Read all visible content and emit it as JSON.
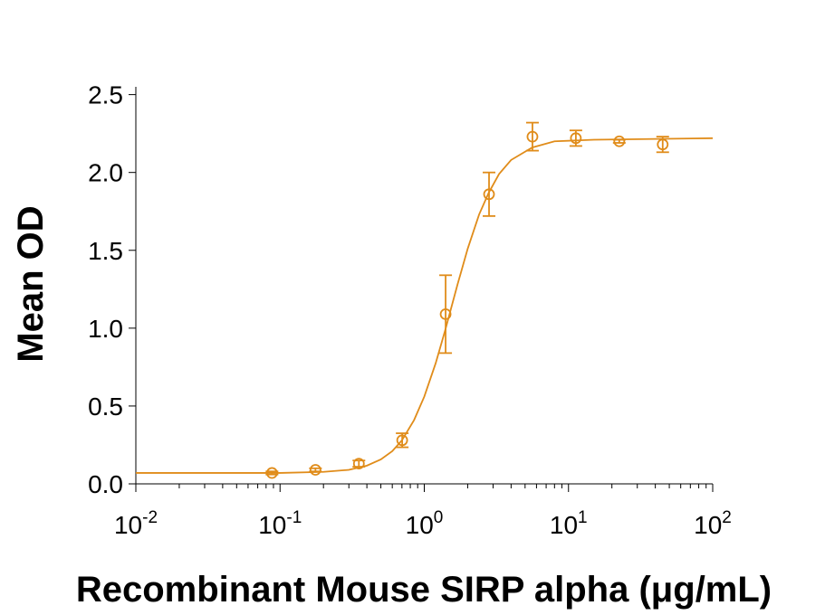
{
  "chart_data": {
    "type": "scatter",
    "xlabel": "Recombinant Mouse SIRP alpha (μg/mL)",
    "ylabel": "Mean OD",
    "xscale": "log",
    "xlim": [
      0.01,
      100
    ],
    "xticks": [
      {
        "value": 0.01,
        "label": "10",
        "exponent": "-2"
      },
      {
        "value": 0.1,
        "label": "10",
        "exponent": "-1"
      },
      {
        "value": 1,
        "label": "10",
        "exponent": "0"
      },
      {
        "value": 10,
        "label": "10",
        "exponent": "1"
      },
      {
        "value": 100,
        "label": "10",
        "exponent": "2"
      }
    ],
    "xminorticks": [
      0.02,
      0.03,
      0.04,
      0.05,
      0.06,
      0.07,
      0.08,
      0.09,
      0.2,
      0.3,
      0.4,
      0.5,
      0.6,
      0.7,
      0.8,
      0.9,
      2,
      3,
      4,
      5,
      6,
      7,
      8,
      9,
      20,
      30,
      40,
      50,
      60,
      70,
      80,
      90
    ],
    "ylim": [
      0,
      2.55
    ],
    "yticks": [
      {
        "value": 0,
        "label": "0.0"
      },
      0.5,
      {
        "value": 1,
        "label": "1.0"
      },
      1.5,
      {
        "value": 2,
        "label": "2.0"
      },
      2.5
    ],
    "grid": false,
    "color": "#e08c1a",
    "series": [
      {
        "color": "#e08c1a",
        "x": [
          0.0879,
          0.176,
          0.352,
          0.703,
          1.406,
          2.8125,
          5.625,
          11.25,
          22.5,
          45
        ],
        "values": [
          0.07,
          0.09,
          0.13,
          0.28,
          1.09,
          1.86,
          2.23,
          2.22,
          2.2,
          2.18
        ],
        "errors": [
          0.01,
          0.01,
          0.02,
          0.045,
          0.25,
          0.14,
          0.09,
          0.05,
          0.01,
          0.05
        ]
      }
    ],
    "fit": {
      "color": "#e08c1a",
      "x": [
        0.01,
        0.1,
        0.2,
        0.3,
        0.4,
        0.5,
        0.6,
        0.7,
        0.85,
        1,
        1.2,
        1.4,
        1.7,
        2,
        2.4,
        2.8,
        3.3,
        4,
        5.6,
        8,
        15,
        100
      ],
      "values": [
        0.07,
        0.07,
        0.077,
        0.09,
        0.117,
        0.157,
        0.21,
        0.28,
        0.41,
        0.56,
        0.775,
        0.99,
        1.28,
        1.51,
        1.73,
        1.87,
        1.99,
        2.08,
        2.16,
        2.2,
        2.21,
        2.22
      ]
    }
  }
}
